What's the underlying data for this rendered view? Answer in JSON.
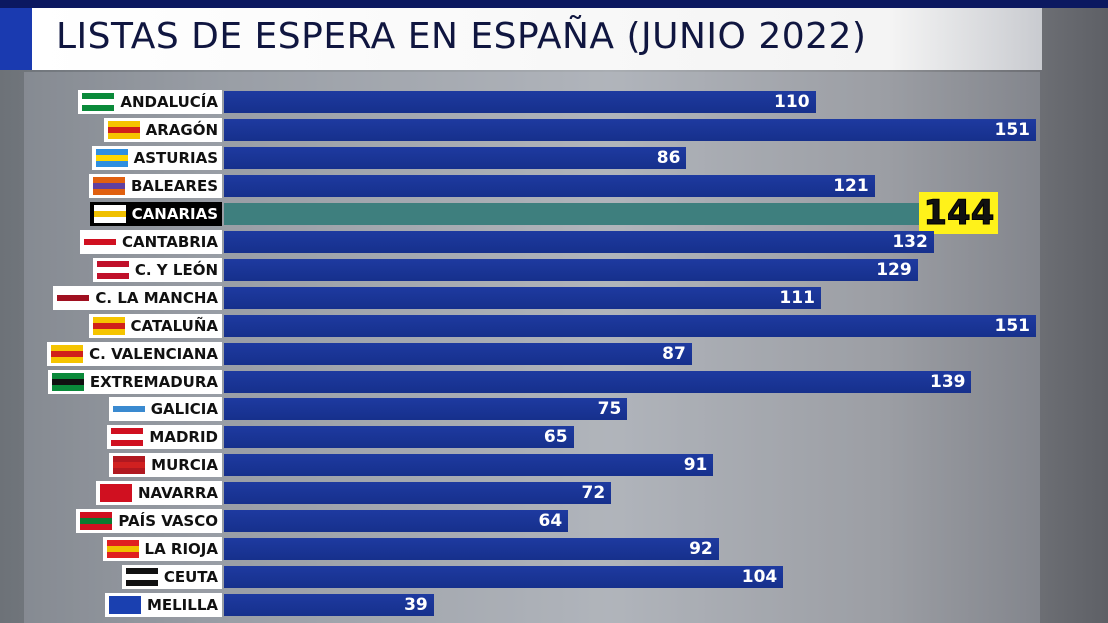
{
  "title": "LISTAS DE ESPERA EN ESPAÑA (JUNIO 2022)",
  "colors": {
    "bar": "#1a3596",
    "highlight_bar": "#3e7f7e",
    "highlight_label": "#fff21a"
  },
  "chart_data": {
    "type": "bar",
    "orientation": "horizontal",
    "title": "LISTAS DE ESPERA EN ESPAÑA (JUNIO 2022)",
    "categories": [
      "ANDALUCÍA",
      "ARAGÓN",
      "ASTURIAS",
      "BALEARES",
      "CANARIAS",
      "CANTABRIA",
      "C. Y LEÓN",
      "C. LA MANCHA",
      "CATALUÑA",
      "C. VALENCIANA",
      "EXTREMADURA",
      "GALICIA",
      "MADRID",
      "MURCIA",
      "NAVARRA",
      "PAÍS VASCO",
      "LA RIOJA",
      "CEUTA",
      "MELILLA"
    ],
    "values": [
      110,
      151,
      86,
      121,
      144,
      132,
      129,
      111,
      151,
      87,
      139,
      75,
      65,
      91,
      72,
      64,
      92,
      104,
      39
    ],
    "value_labels": [
      "110",
      "151",
      "86",
      "121",
      "144",
      "132",
      "129",
      "111",
      "151",
      "87",
      "139",
      "75",
      "65",
      "91",
      "72",
      "64",
      "92",
      "104",
      "39"
    ],
    "highlighted": "CANARIAS",
    "xlim": [
      0,
      151
    ],
    "grid": false,
    "legend": "none",
    "flag_colors": [
      [
        "#0a8a3a",
        "#ffffff"
      ],
      [
        "#f5c400",
        "#d0201a"
      ],
      [
        "#2f8fe0",
        "#ffd700"
      ],
      [
        "#e06010",
        "#6040a0"
      ],
      [
        "#ffffff",
        "#f0c000"
      ],
      [
        "#ffffff",
        "#d01020"
      ],
      [
        "#c0102a",
        "#ffffff"
      ],
      [
        "#ffffff",
        "#a01020"
      ],
      [
        "#f5c400",
        "#d0201a"
      ],
      [
        "#f5c400",
        "#d0201a"
      ],
      [
        "#0a8a3a",
        "#111111"
      ],
      [
        "#ffffff",
        "#3a8ad0"
      ],
      [
        "#d01020",
        "#ffffff"
      ],
      [
        "#b01820",
        "#d02020"
      ],
      [
        "#d01020",
        "#d01020"
      ],
      [
        "#d01020",
        "#0a7a30"
      ],
      [
        "#e02020",
        "#f0c000"
      ],
      [
        "#111111",
        "#ffffff"
      ],
      [
        "#1a40b0",
        "#1a40b0"
      ]
    ]
  }
}
